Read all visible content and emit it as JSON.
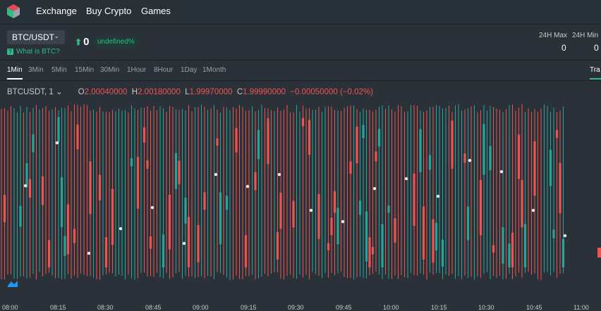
{
  "nav": {
    "logo_icon": "cube-logo-icon",
    "links": [
      "Exchange",
      "Buy Crypto",
      "Games"
    ]
  },
  "ticker": {
    "pair": "BTC/USDT",
    "what_is": "What is BTC?",
    "price": "0",
    "change_badge": "undefined%",
    "high_label": "24H Max",
    "high_value": "0",
    "low_label": "24H Min",
    "low_value": "0"
  },
  "intervals": {
    "items": [
      "1Min",
      "3Min",
      "5Min",
      "15Min",
      "30Min",
      "1Hour",
      "8Hour",
      "1Day",
      "1Month"
    ],
    "active": "1Min",
    "trade_tab": "Tra"
  },
  "legend": {
    "symbol": "BTCUSDT, 1",
    "o_label": "O",
    "o_value": "2.00040000",
    "h_label": "H",
    "h_value": "2.00180000",
    "l_label": "L",
    "l_value": "1.99970000",
    "c_label": "C",
    "c_value": "1.99990000",
    "change": "−0.00050000 (−0.02%)"
  },
  "colors": {
    "up": "#26a69a",
    "down": "#ef5350",
    "accent": "#2ebd85",
    "background": "#2b3139"
  },
  "chart_data": {
    "type": "candlestick",
    "x_tick_labels": [
      "08:00",
      "08:15",
      "08:30",
      "08:45",
      "09:00",
      "09:15",
      "09:30",
      "09:45",
      "10:00",
      "10:15",
      "10:30",
      "10:45",
      "11:00"
    ],
    "last_close": 1.9999,
    "grid": false
  }
}
